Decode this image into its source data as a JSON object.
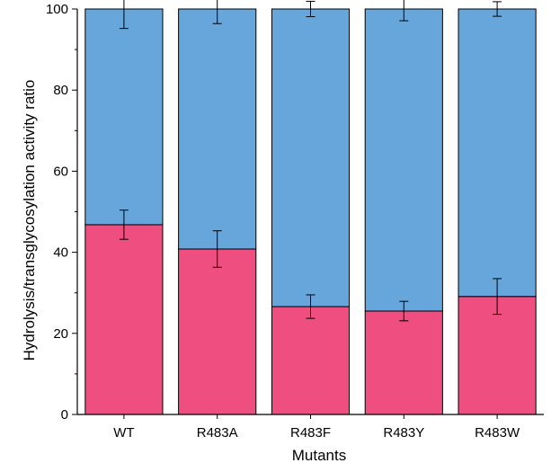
{
  "chart_data": {
    "type": "bar",
    "stacked": true,
    "categories": [
      "WT",
      "R483A",
      "R483F",
      "R483Y",
      "R483W"
    ],
    "series": [
      {
        "values": [
          46.8,
          40.8,
          26.6,
          25.5,
          29.1
        ],
        "errors": [
          3.6,
          4.5,
          2.9,
          2.4,
          4.4
        ],
        "color": "#ee4f80"
      },
      {
        "values": [
          53.2,
          59.2,
          73.4,
          74.5,
          70.9
        ],
        "errors": [
          4.8,
          3.6,
          1.9,
          2.9,
          1.8
        ],
        "color": "#66a6db"
      }
    ],
    "xlabel": "Mutants",
    "ylabel": "Hydrolysis/transglycosylation activity ratio",
    "ylim": [
      0,
      100
    ],
    "yticks": [
      0,
      20,
      40,
      60,
      80,
      100
    ],
    "grid": false,
    "legend": "none"
  }
}
